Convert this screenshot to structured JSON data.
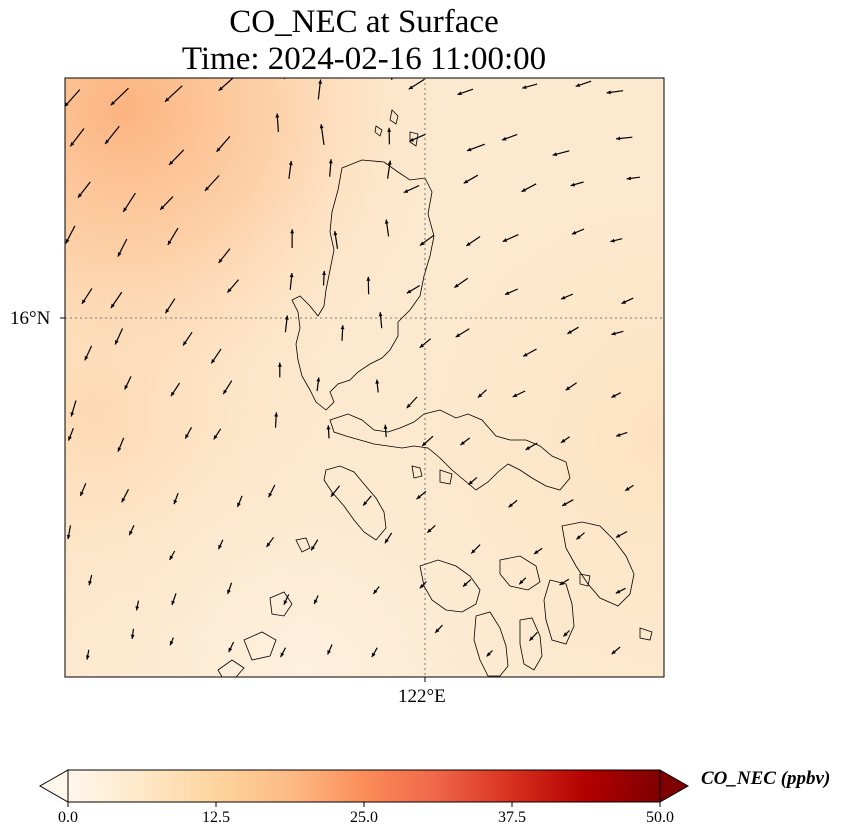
{
  "title": {
    "line1": "CO_NEC at Surface",
    "line2": "Time: 2024-02-16 11:00:00"
  },
  "map": {
    "lat_label": "16°N",
    "lon_label": "122°E",
    "field_colors": {
      "background": "#fde9cf",
      "plume": "#fcb583",
      "plume_light": "#fdd1a6"
    }
  },
  "colorbar": {
    "label": "CO_NEC (ppbv)",
    "min": 0.0,
    "max": 50.0,
    "ticks": [
      "0.0",
      "12.5",
      "25.0",
      "37.5",
      "50.0"
    ],
    "extend": "both",
    "colormap": [
      "#fff7ec",
      "#fee8c8",
      "#fdd49e",
      "#fdbb84",
      "#fc8d59",
      "#ef6548",
      "#d7301f",
      "#b30000",
      "#7f0000"
    ]
  },
  "wind_vectors": {
    "shown": true,
    "color": "#000000"
  }
}
